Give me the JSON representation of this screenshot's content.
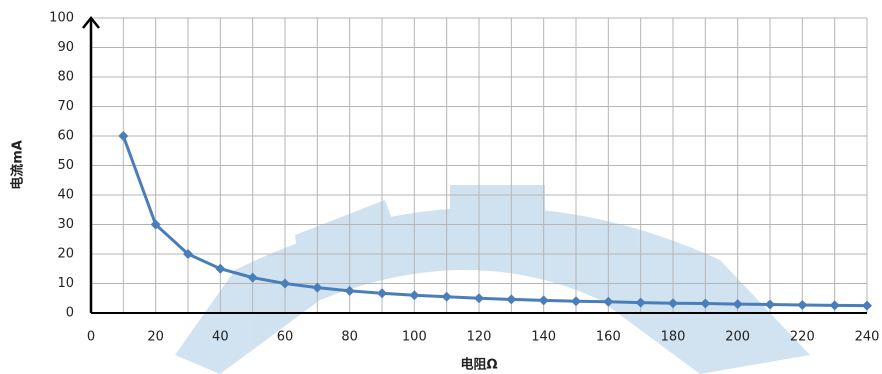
{
  "chart_data": {
    "type": "line",
    "x_label": "电阻Ω",
    "y_label": "电流mA",
    "x": [
      10,
      20,
      30,
      40,
      50,
      60,
      70,
      80,
      90,
      100,
      110,
      120,
      130,
      140,
      150,
      160,
      170,
      180,
      190,
      200,
      210,
      220,
      230,
      240
    ],
    "series": [
      {
        "name": "电流",
        "color": "#4a7ebb",
        "values": [
          60,
          30,
          20,
          15,
          12,
          10,
          8.6,
          7.5,
          6.7,
          6,
          5.5,
          5,
          4.6,
          4.3,
          4,
          3.8,
          3.5,
          3.3,
          3.2,
          3,
          2.9,
          2.7,
          2.6,
          2.5
        ]
      }
    ],
    "xlim": [
      0,
      240
    ],
    "xticks": [
      0,
      20,
      40,
      60,
      80,
      100,
      120,
      140,
      160,
      180,
      200,
      220,
      240
    ],
    "x_minor_grid": [
      10,
      30,
      50,
      70,
      90,
      110,
      130,
      150,
      170,
      190,
      210,
      230
    ],
    "ylim": [
      0,
      100
    ],
    "yticks": [
      0,
      10,
      20,
      30,
      40,
      50,
      60,
      70,
      80,
      90,
      100
    ],
    "grid": true
  }
}
